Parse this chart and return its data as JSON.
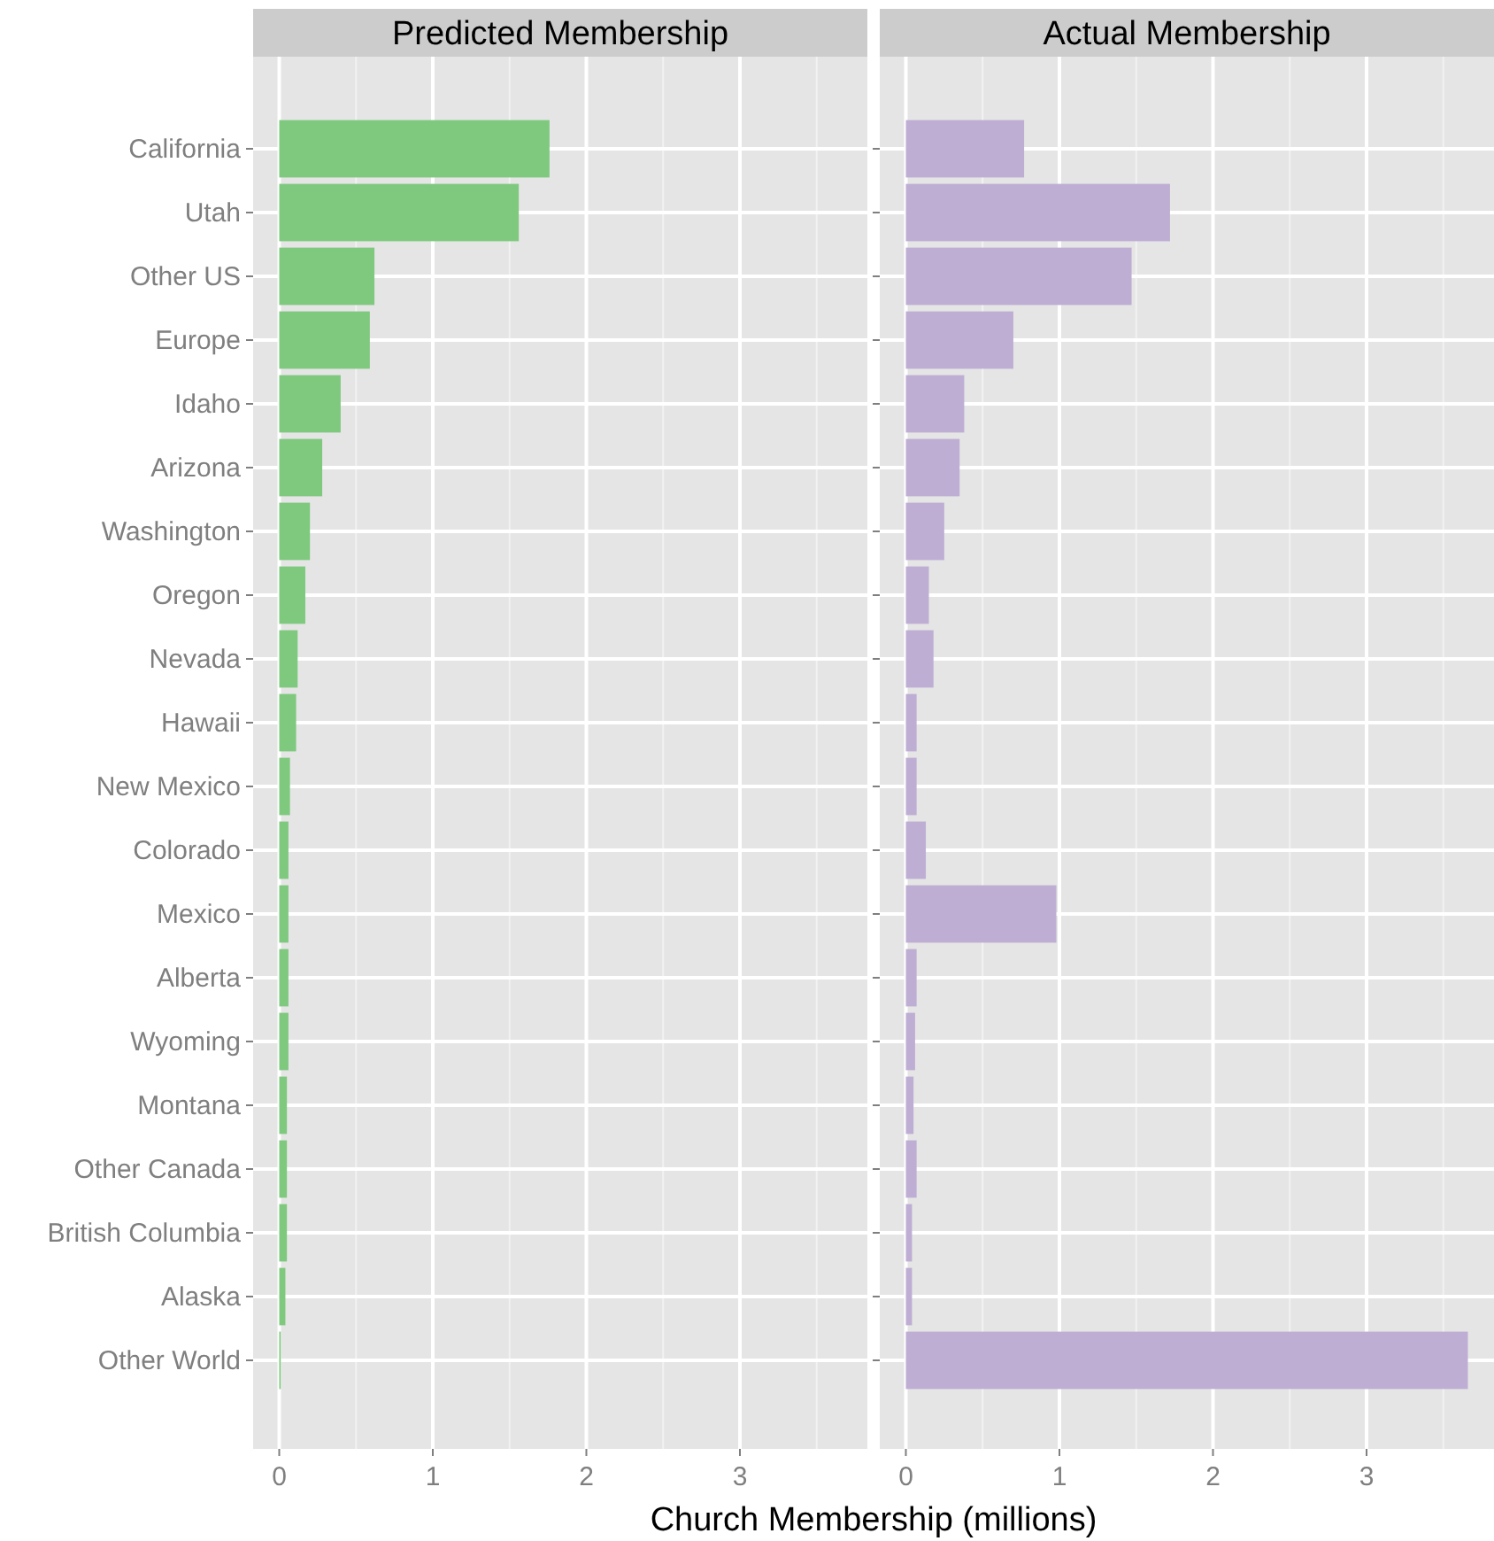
{
  "chart_data": [
    {
      "type": "bar",
      "orientation": "horizontal",
      "title": "Predicted Membership",
      "xlabel": "Church Membership (millions)",
      "categories": [
        "California",
        "Utah",
        "Other US",
        "Europe",
        "Idaho",
        "Arizona",
        "Washington",
        "Oregon",
        "Nevada",
        "Hawaii",
        "New Mexico",
        "Colorado",
        "Mexico",
        "Alberta",
        "Wyoming",
        "Montana",
        "Other Canada",
        "British Columbia",
        "Alaska",
        "Other World"
      ],
      "values": [
        1.76,
        1.56,
        0.62,
        0.59,
        0.4,
        0.28,
        0.2,
        0.17,
        0.12,
        0.11,
        0.07,
        0.06,
        0.06,
        0.06,
        0.06,
        0.05,
        0.05,
        0.05,
        0.04,
        0.01
      ],
      "color": "#7fc97f",
      "xlim": [
        -0.17,
        3.83
      ],
      "xticks": [
        0,
        1,
        2,
        3
      ],
      "grid": true
    },
    {
      "type": "bar",
      "orientation": "horizontal",
      "title": "Actual Membership",
      "categories": [
        null,
        null,
        null,
        null,
        null,
        null,
        null,
        null,
        null,
        null,
        null,
        null,
        null,
        null,
        null,
        null,
        null,
        null,
        null,
        null
      ],
      "values": [
        0.77,
        1.72,
        1.47,
        0.7,
        0.38,
        0.35,
        0.25,
        0.15,
        0.18,
        0.07,
        0.07,
        0.13,
        0.98,
        0.07,
        0.06,
        0.05,
        0.07,
        0.04,
        0.04,
        3.66
      ],
      "color": "#beaed4",
      "xlim": [
        -0.17,
        3.83
      ],
      "xticks": [
        0,
        1,
        2,
        3
      ],
      "grid": true,
      "tick_labels": "x"
    }
  ]
}
